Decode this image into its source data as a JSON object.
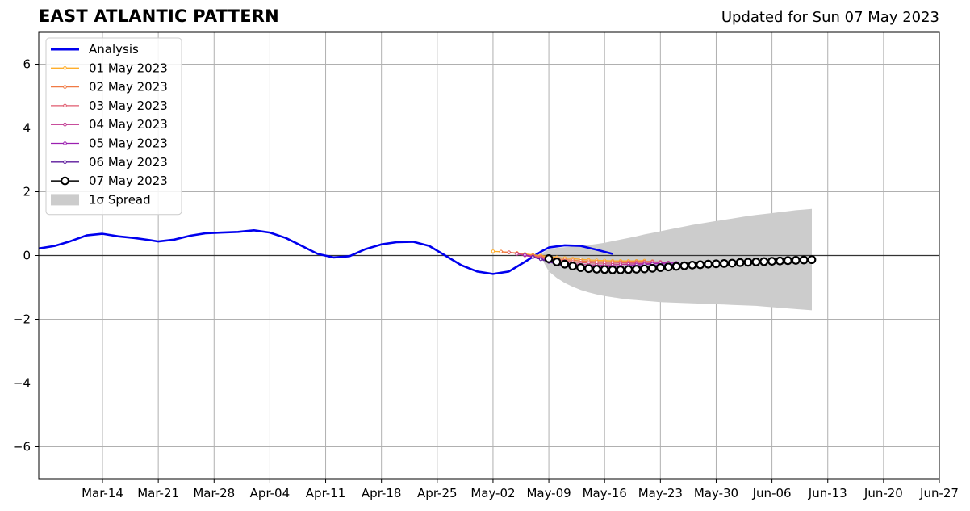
{
  "header": {
    "title": "EAST ATLANTIC PATTERN",
    "subtitle": "Updated for Sun 07 May 2023"
  },
  "chart_data": {
    "type": "line",
    "title": "EAST ATLANTIC PATTERN",
    "subtitle": "Updated for Sun 07 May 2023",
    "xlabel": "",
    "ylabel": "",
    "xlim": [
      "2023-03-06",
      "2023-06-27"
    ],
    "ylim": [
      -7,
      7
    ],
    "grid": true,
    "legend_position": "upper-left",
    "x_ticks": [
      "2023-03-14",
      "2023-03-21",
      "2023-03-28",
      "2023-04-04",
      "2023-04-11",
      "2023-04-18",
      "2023-04-25",
      "2023-05-02",
      "2023-05-09",
      "2023-05-16",
      "2023-05-23",
      "2023-05-30",
      "2023-06-06",
      "2023-06-13",
      "2023-06-20",
      "2023-06-27"
    ],
    "x_tick_labels": [
      "Mar-14",
      "Mar-21",
      "Mar-28",
      "Apr-04",
      "Apr-11",
      "Apr-18",
      "Apr-25",
      "May-02",
      "May-09",
      "May-16",
      "May-23",
      "May-30",
      "Jun-06",
      "Jun-13",
      "Jun-20",
      "Jun-27"
    ],
    "y_ticks": [
      -6,
      -4,
      -2,
      0,
      2,
      4,
      6
    ],
    "y_tick_labels": [
      "−6",
      "−4",
      "−2",
      "0",
      "2",
      "4",
      "6"
    ],
    "series": [
      {
        "name": "Analysis",
        "color": "#0000ee",
        "points": [
          [
            "2023-03-06",
            0.22
          ],
          [
            "2023-03-08",
            0.3
          ],
          [
            "2023-03-10",
            0.45
          ],
          [
            "2023-03-12",
            0.63
          ],
          [
            "2023-03-14",
            0.68
          ],
          [
            "2023-03-16",
            0.6
          ],
          [
            "2023-03-18",
            0.55
          ],
          [
            "2023-03-20",
            0.48
          ],
          [
            "2023-03-21",
            0.44
          ],
          [
            "2023-03-23",
            0.5
          ],
          [
            "2023-03-25",
            0.62
          ],
          [
            "2023-03-27",
            0.7
          ],
          [
            "2023-03-29",
            0.72
          ],
          [
            "2023-03-31",
            0.74
          ],
          [
            "2023-04-02",
            0.79
          ],
          [
            "2023-04-04",
            0.72
          ],
          [
            "2023-04-06",
            0.55
          ],
          [
            "2023-04-08",
            0.3
          ],
          [
            "2023-04-10",
            0.05
          ],
          [
            "2023-04-12",
            -0.06
          ],
          [
            "2023-04-14",
            -0.02
          ],
          [
            "2023-04-16",
            0.2
          ],
          [
            "2023-04-18",
            0.35
          ],
          [
            "2023-04-20",
            0.42
          ],
          [
            "2023-04-22",
            0.43
          ],
          [
            "2023-04-24",
            0.3
          ],
          [
            "2023-04-26",
            0.0
          ],
          [
            "2023-04-28",
            -0.3
          ],
          [
            "2023-04-30",
            -0.5
          ],
          [
            "2023-05-02",
            -0.58
          ],
          [
            "2023-05-04",
            -0.5
          ],
          [
            "2023-05-06",
            -0.2
          ],
          [
            "2023-05-08",
            0.12
          ],
          [
            "2023-05-09",
            0.25
          ],
          [
            "2023-05-11",
            0.32
          ],
          [
            "2023-05-13",
            0.3
          ],
          [
            "2023-05-15",
            0.18
          ],
          [
            "2023-05-17",
            0.05
          ]
        ]
      },
      {
        "name": "01 May 2023",
        "color": "#ffae2a",
        "points": [
          [
            "2023-05-02",
            0.13
          ],
          [
            "2023-05-03",
            0.12
          ],
          [
            "2023-05-04",
            0.1
          ],
          [
            "2023-05-05",
            0.08
          ],
          [
            "2023-05-06",
            0.05
          ],
          [
            "2023-05-07",
            0.02
          ],
          [
            "2023-05-08",
            0.0
          ],
          [
            "2023-05-09",
            -0.03
          ],
          [
            "2023-05-10",
            -0.06
          ],
          [
            "2023-05-11",
            -0.08
          ],
          [
            "2023-05-12",
            -0.1
          ],
          [
            "2023-05-13",
            -0.12
          ],
          [
            "2023-05-14",
            -0.14
          ],
          [
            "2023-05-15",
            -0.15
          ],
          [
            "2023-05-16",
            -0.16
          ],
          [
            "2023-05-17",
            -0.17
          ],
          [
            "2023-05-18",
            -0.17
          ],
          [
            "2023-05-19",
            -0.17
          ],
          [
            "2023-05-20",
            -0.17
          ],
          [
            "2023-05-21",
            -0.16
          ]
        ]
      },
      {
        "name": "02 May 2023",
        "color": "#f07a45",
        "points": [
          [
            "2023-05-03",
            0.12
          ],
          [
            "2023-05-04",
            0.1
          ],
          [
            "2023-05-05",
            0.07
          ],
          [
            "2023-05-06",
            0.03
          ],
          [
            "2023-05-07",
            0.0
          ],
          [
            "2023-05-08",
            -0.03
          ],
          [
            "2023-05-09",
            -0.07
          ],
          [
            "2023-05-10",
            -0.1
          ],
          [
            "2023-05-11",
            -0.13
          ],
          [
            "2023-05-12",
            -0.15
          ],
          [
            "2023-05-13",
            -0.17
          ],
          [
            "2023-05-14",
            -0.18
          ],
          [
            "2023-05-15",
            -0.19
          ],
          [
            "2023-05-16",
            -0.2
          ],
          [
            "2023-05-17",
            -0.2
          ],
          [
            "2023-05-18",
            -0.2
          ],
          [
            "2023-05-19",
            -0.2
          ],
          [
            "2023-05-20",
            -0.19
          ],
          [
            "2023-05-21",
            -0.19
          ],
          [
            "2023-05-22",
            -0.18
          ]
        ]
      },
      {
        "name": "03 May 2023",
        "color": "#e05a6e",
        "points": [
          [
            "2023-05-04",
            0.1
          ],
          [
            "2023-05-05",
            0.06
          ],
          [
            "2023-05-06",
            0.02
          ],
          [
            "2023-05-07",
            -0.02
          ],
          [
            "2023-05-08",
            -0.06
          ],
          [
            "2023-05-09",
            -0.1
          ],
          [
            "2023-05-10",
            -0.14
          ],
          [
            "2023-05-11",
            -0.17
          ],
          [
            "2023-05-12",
            -0.2
          ],
          [
            "2023-05-13",
            -0.22
          ],
          [
            "2023-05-14",
            -0.23
          ],
          [
            "2023-05-15",
            -0.24
          ],
          [
            "2023-05-16",
            -0.24
          ],
          [
            "2023-05-17",
            -0.24
          ],
          [
            "2023-05-18",
            -0.23
          ],
          [
            "2023-05-19",
            -0.23
          ],
          [
            "2023-05-20",
            -0.22
          ],
          [
            "2023-05-21",
            -0.21
          ],
          [
            "2023-05-22",
            -0.2
          ],
          [
            "2023-05-23",
            -0.2
          ]
        ]
      },
      {
        "name": "04 May 2023",
        "color": "#c0348e",
        "points": [
          [
            "2023-05-05",
            0.05
          ],
          [
            "2023-05-06",
            0.0
          ],
          [
            "2023-05-07",
            -0.05
          ],
          [
            "2023-05-08",
            -0.1
          ],
          [
            "2023-05-09",
            -0.15
          ],
          [
            "2023-05-10",
            -0.19
          ],
          [
            "2023-05-11",
            -0.23
          ],
          [
            "2023-05-12",
            -0.26
          ],
          [
            "2023-05-13",
            -0.28
          ],
          [
            "2023-05-14",
            -0.29
          ],
          [
            "2023-05-15",
            -0.3
          ],
          [
            "2023-05-16",
            -0.3
          ],
          [
            "2023-05-17",
            -0.29
          ],
          [
            "2023-05-18",
            -0.28
          ],
          [
            "2023-05-19",
            -0.27
          ],
          [
            "2023-05-20",
            -0.26
          ],
          [
            "2023-05-21",
            -0.25
          ],
          [
            "2023-05-22",
            -0.24
          ],
          [
            "2023-05-23",
            -0.23
          ],
          [
            "2023-05-24",
            -0.22
          ]
        ]
      },
      {
        "name": "05 May 2023",
        "color": "#9b1fb0",
        "points": [
          [
            "2023-05-06",
            0.02
          ],
          [
            "2023-05-07",
            -0.04
          ],
          [
            "2023-05-08",
            -0.1
          ],
          [
            "2023-05-09",
            -0.16
          ],
          [
            "2023-05-10",
            -0.22
          ],
          [
            "2023-05-11",
            -0.27
          ],
          [
            "2023-05-12",
            -0.31
          ],
          [
            "2023-05-13",
            -0.34
          ],
          [
            "2023-05-14",
            -0.35
          ],
          [
            "2023-05-15",
            -0.36
          ],
          [
            "2023-05-16",
            -0.36
          ],
          [
            "2023-05-17",
            -0.35
          ],
          [
            "2023-05-18",
            -0.34
          ],
          [
            "2023-05-19",
            -0.32
          ],
          [
            "2023-05-20",
            -0.3
          ],
          [
            "2023-05-21",
            -0.28
          ],
          [
            "2023-05-22",
            -0.26
          ],
          [
            "2023-05-23",
            -0.25
          ],
          [
            "2023-05-24",
            -0.24
          ],
          [
            "2023-05-25",
            -0.23
          ]
        ]
      },
      {
        "name": "06 May 2023",
        "color": "#5c1a9c",
        "points": [
          [
            "2023-05-07",
            -0.05
          ],
          [
            "2023-05-08",
            -0.12
          ],
          [
            "2023-05-09",
            -0.2
          ],
          [
            "2023-05-10",
            -0.27
          ],
          [
            "2023-05-11",
            -0.33
          ],
          [
            "2023-05-12",
            -0.38
          ],
          [
            "2023-05-13",
            -0.41
          ],
          [
            "2023-05-14",
            -0.43
          ],
          [
            "2023-05-15",
            -0.44
          ],
          [
            "2023-05-16",
            -0.44
          ],
          [
            "2023-05-17",
            -0.43
          ],
          [
            "2023-05-18",
            -0.41
          ],
          [
            "2023-05-19",
            -0.39
          ],
          [
            "2023-05-20",
            -0.36
          ],
          [
            "2023-05-21",
            -0.34
          ],
          [
            "2023-05-22",
            -0.32
          ],
          [
            "2023-05-23",
            -0.3
          ],
          [
            "2023-05-24",
            -0.28
          ],
          [
            "2023-05-25",
            -0.27
          ],
          [
            "2023-05-26",
            -0.26
          ]
        ]
      },
      {
        "name": "07 May 2023",
        "color": "#000000",
        "points": [
          [
            "2023-05-09",
            -0.1
          ],
          [
            "2023-05-10",
            -0.2
          ],
          [
            "2023-05-11",
            -0.27
          ],
          [
            "2023-05-12",
            -0.33
          ],
          [
            "2023-05-13",
            -0.38
          ],
          [
            "2023-05-14",
            -0.41
          ],
          [
            "2023-05-15",
            -0.43
          ],
          [
            "2023-05-16",
            -0.44
          ],
          [
            "2023-05-17",
            -0.45
          ],
          [
            "2023-05-18",
            -0.45
          ],
          [
            "2023-05-19",
            -0.44
          ],
          [
            "2023-05-20",
            -0.43
          ],
          [
            "2023-05-21",
            -0.42
          ],
          [
            "2023-05-22",
            -0.4
          ],
          [
            "2023-05-23",
            -0.38
          ],
          [
            "2023-05-24",
            -0.36
          ],
          [
            "2023-05-25",
            -0.34
          ],
          [
            "2023-05-26",
            -0.32
          ],
          [
            "2023-05-27",
            -0.3
          ],
          [
            "2023-05-28",
            -0.29
          ],
          [
            "2023-05-29",
            -0.27
          ],
          [
            "2023-05-30",
            -0.26
          ],
          [
            "2023-05-31",
            -0.25
          ],
          [
            "2023-06-01",
            -0.24
          ],
          [
            "2023-06-02",
            -0.22
          ],
          [
            "2023-06-03",
            -0.21
          ],
          [
            "2023-06-04",
            -0.2
          ],
          [
            "2023-06-05",
            -0.19
          ],
          [
            "2023-06-06",
            -0.18
          ],
          [
            "2023-06-07",
            -0.17
          ],
          [
            "2023-06-08",
            -0.16
          ],
          [
            "2023-06-09",
            -0.15
          ],
          [
            "2023-06-10",
            -0.14
          ],
          [
            "2023-06-11",
            -0.13
          ]
        ]
      }
    ],
    "spread": {
      "name": "1σ Spread",
      "color": "#cccccc",
      "x": [
        "2023-05-08",
        "2023-05-09",
        "2023-05-10",
        "2023-05-11",
        "2023-05-12",
        "2023-05-13",
        "2023-05-14",
        "2023-05-15",
        "2023-05-16",
        "2023-05-17",
        "2023-05-18",
        "2023-05-19",
        "2023-05-20",
        "2023-05-21",
        "2023-05-22",
        "2023-05-23",
        "2023-05-24",
        "2023-05-25",
        "2023-05-26",
        "2023-05-27",
        "2023-05-28",
        "2023-05-29",
        "2023-05-30",
        "2023-05-31",
        "2023-06-01",
        "2023-06-02",
        "2023-06-03",
        "2023-06-04",
        "2023-06-05",
        "2023-06-06",
        "2023-06-07",
        "2023-06-08",
        "2023-06-09",
        "2023-06-10",
        "2023-06-11"
      ],
      "upper": [
        0.05,
        0.2,
        0.24,
        0.26,
        0.28,
        0.3,
        0.33,
        0.36,
        0.4,
        0.45,
        0.5,
        0.55,
        0.6,
        0.66,
        0.71,
        0.76,
        0.81,
        0.86,
        0.91,
        0.96,
        1.0,
        1.04,
        1.08,
        1.12,
        1.16,
        1.2,
        1.24,
        1.27,
        1.3,
        1.33,
        1.36,
        1.39,
        1.42,
        1.44,
        1.46
      ],
      "lower": [
        -0.05,
        -0.5,
        -0.7,
        -0.86,
        -0.98,
        -1.08,
        -1.16,
        -1.22,
        -1.27,
        -1.31,
        -1.35,
        -1.38,
        -1.4,
        -1.42,
        -1.44,
        -1.46,
        -1.47,
        -1.48,
        -1.49,
        -1.5,
        -1.51,
        -1.52,
        -1.53,
        -1.54,
        -1.55,
        -1.56,
        -1.57,
        -1.58,
        -1.6,
        -1.62,
        -1.64,
        -1.66,
        -1.68,
        -1.7,
        -1.72
      ]
    },
    "legend": [
      {
        "label": "Analysis",
        "kind": "thick-line",
        "color": "#0000ee"
      },
      {
        "label": "01 May 2023",
        "kind": "dot-line",
        "color": "#ffae2a"
      },
      {
        "label": "02 May 2023",
        "kind": "dot-line",
        "color": "#f07a45"
      },
      {
        "label": "03 May 2023",
        "kind": "dot-line",
        "color": "#e05a6e"
      },
      {
        "label": "04 May 2023",
        "kind": "dot-line",
        "color": "#c0348e"
      },
      {
        "label": "05 May 2023",
        "kind": "dot-line",
        "color": "#9b1fb0"
      },
      {
        "label": "06 May 2023",
        "kind": "dot-line",
        "color": "#5c1a9c"
      },
      {
        "label": "07 May 2023",
        "kind": "circle-line",
        "color": "#000000"
      },
      {
        "label": "1σ Spread",
        "kind": "patch",
        "color": "#cccccc"
      }
    ]
  }
}
